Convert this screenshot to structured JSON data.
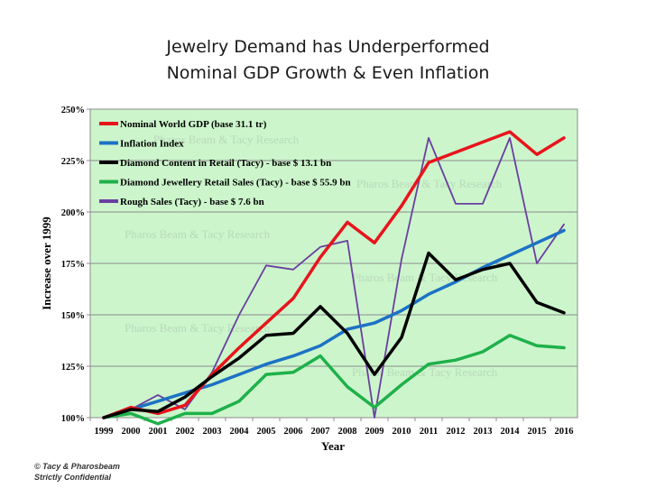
{
  "title": [
    "Jewelry Demand has Underperformed",
    "Nominal GDP Growth & Even Inflation"
  ],
  "footer": [
    "© Tacy & Pharosbeam",
    "Strictly Confidential"
  ],
  "watermark_text": [
    "Pharos Beam & Tacy Research",
    "Pharos Beam & Tacy Research",
    "Pharos Beam & Tacy Research",
    "Pharos Beam & Tacy Research",
    "Pharos Beam & Tacy Research",
    "Pharos Beam & Tacy Research"
  ],
  "chart_data": {
    "type": "line",
    "xlabel": "Year",
    "ylabel": "Increase over 1999",
    "x": [
      1999,
      2000,
      2001,
      2002,
      2003,
      2004,
      2005,
      2006,
      2007,
      2008,
      2009,
      2010,
      2011,
      2012,
      2013,
      2014,
      2015,
      2016
    ],
    "ylim": [
      100,
      250
    ],
    "yticks": [
      100,
      125,
      150,
      175,
      200,
      225,
      250
    ],
    "ytick_labels": [
      "100%",
      "125%",
      "150%",
      "175%",
      "200%",
      "225%",
      "250%"
    ],
    "plot_background": "#ccf5cc",
    "grid": "horizontal",
    "legend_position": "top-left",
    "series": [
      {
        "name": "Nominal World GDP (base 31.1 tr)",
        "color": "#e8141c",
        "values": [
          100,
          105,
          102,
          106,
          121,
          134,
          146,
          158,
          178,
          195,
          185,
          203,
          224,
          229,
          234,
          239,
          228,
          236
        ]
      },
      {
        "name": "Inflation Index",
        "color": "#1c72c4",
        "values": [
          100,
          104,
          108,
          112,
          116,
          121,
          126,
          130,
          135,
          143,
          146,
          152,
          160,
          166,
          173,
          179,
          185,
          191
        ]
      },
      {
        "name": "Diamond Content in Retail (Tacy) - base $ 13.1 bn",
        "color": "#000000",
        "values": [
          100,
          104,
          103,
          110,
          120,
          129,
          140,
          141,
          154,
          141,
          121,
          139,
          180,
          167,
          172,
          175,
          156,
          151
        ]
      },
      {
        "name": "Diamond Jewellery Retail Sales (Tacy) - base $ 55.9 bn",
        "color": "#1fb04a",
        "values": [
          100,
          102,
          97,
          102,
          102,
          108,
          121,
          122,
          130,
          115,
          105,
          116,
          126,
          128,
          132,
          140,
          135,
          134
        ]
      },
      {
        "name": "Rough Sales (Tacy) - base $ 7.6 bn",
        "color": "#6a3fa0",
        "values": [
          100,
          104,
          111,
          104,
          122,
          150,
          174,
          172,
          183,
          186,
          100,
          177,
          236,
          204,
          204,
          236,
          175,
          194
        ]
      }
    ]
  }
}
